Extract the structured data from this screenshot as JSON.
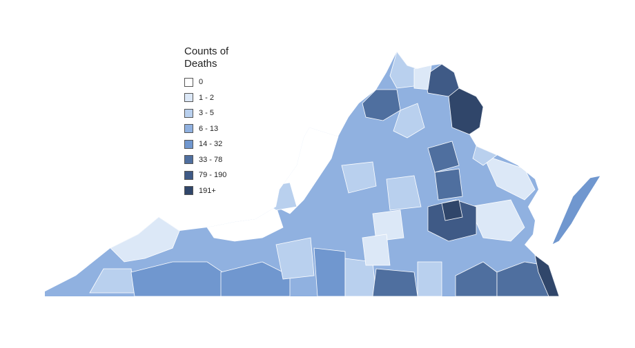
{
  "legend": {
    "title": "Counts of Deaths",
    "items": [
      {
        "label": "0",
        "color": "#ffffff"
      },
      {
        "label": "1 - 2",
        "color": "#dce8f7"
      },
      {
        "label": "3 - 5",
        "color": "#b9d0ee"
      },
      {
        "label": "6 - 13",
        "color": "#90b1e0"
      },
      {
        "label": "14 - 32",
        "color": "#7097cf"
      },
      {
        "label": "33 - 78",
        "color": "#4f6f9f"
      },
      {
        "label": "79 - 190",
        "color": "#3f5a86"
      },
      {
        "label": "191+",
        "color": "#30466a"
      }
    ]
  }
}
